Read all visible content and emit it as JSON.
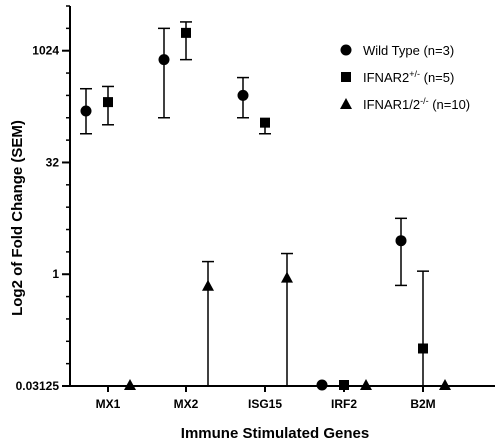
{
  "chart_data": {
    "type": "scatter",
    "xlabel": "Immune Stimulated Genes",
    "ylabel": "Log2 of Fold Change (SEM)",
    "y_scale": "log2",
    "ylim": [
      0.03125,
      4096
    ],
    "yticks": [
      {
        "value": 0.03125,
        "label": "0.03125"
      },
      {
        "value": 1,
        "label": "1"
      },
      {
        "value": 32,
        "label": "32"
      },
      {
        "value": 1024,
        "label": "1024"
      }
    ],
    "categories": [
      "MX1",
      "MX2",
      "ISG15",
      "IRF2",
      "B2M"
    ],
    "legend_position": "top-right",
    "series": [
      {
        "name": "Wild Type (n=3)",
        "name_sup": "",
        "name_suffix": "",
        "marker": "circle",
        "values": [
          158,
          776,
          256,
          0.03125,
          2.83
        ],
        "err_low": [
          78,
          128,
          128,
          null,
          0.707
        ],
        "err_high": [
          315,
          2048,
          445,
          null,
          5.66
        ]
      },
      {
        "name": "IFNAR2",
        "name_sup": "+/-",
        "name_suffix": " (n=5)",
        "marker": "square",
        "values": [
          208,
          1780,
          110,
          0.03125,
          0.1
        ],
        "err_low": [
          103,
          776,
          78,
          null,
          null
        ],
        "err_high": [
          338,
          2500,
          null,
          null,
          1.1
        ]
      },
      {
        "name": "IFNAR1/2",
        "name_sup": "-/-",
        "name_suffix": " (n=10)",
        "marker": "triangle",
        "values": [
          0.03125,
          0.7,
          0.9,
          0.03125,
          0.03125
        ],
        "err_low": [
          null,
          null,
          null,
          null,
          null
        ],
        "err_high": [
          null,
          1.48,
          1.9,
          null,
          null
        ]
      }
    ]
  }
}
